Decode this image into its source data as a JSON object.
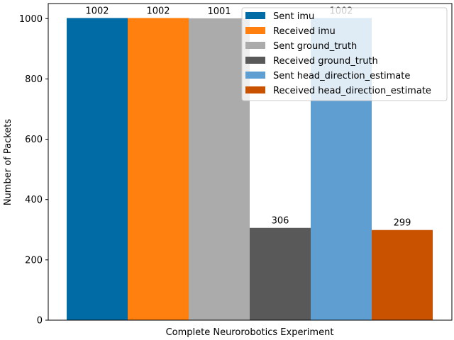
{
  "chart_data": {
    "type": "bar",
    "title": "",
    "xlabel": "Complete Neurorobotics Experiment",
    "ylabel": "Number of Packets",
    "ylim": [
      0,
      1050
    ],
    "yticks": [
      0,
      200,
      400,
      600,
      800,
      1000
    ],
    "grid": false,
    "legend_position": "top-right",
    "series": [
      {
        "name": "Sent imu",
        "value": 1002,
        "label": "1002",
        "color": "#006ba4"
      },
      {
        "name": "Received imu",
        "value": 1002,
        "label": "1002",
        "color": "#ff800e"
      },
      {
        "name": "Sent ground_truth",
        "value": 1001,
        "label": "1001",
        "color": "#ababab"
      },
      {
        "name": "Received ground_truth",
        "value": 306,
        "label": "306",
        "color": "#595959"
      },
      {
        "name": "Sent head_direction_estimate",
        "value": 1002,
        "label": "1002",
        "color": "#5f9ed1"
      },
      {
        "name": "Received head_direction_estimate",
        "value": 299,
        "label": "299",
        "color": "#c85200"
      }
    ]
  }
}
